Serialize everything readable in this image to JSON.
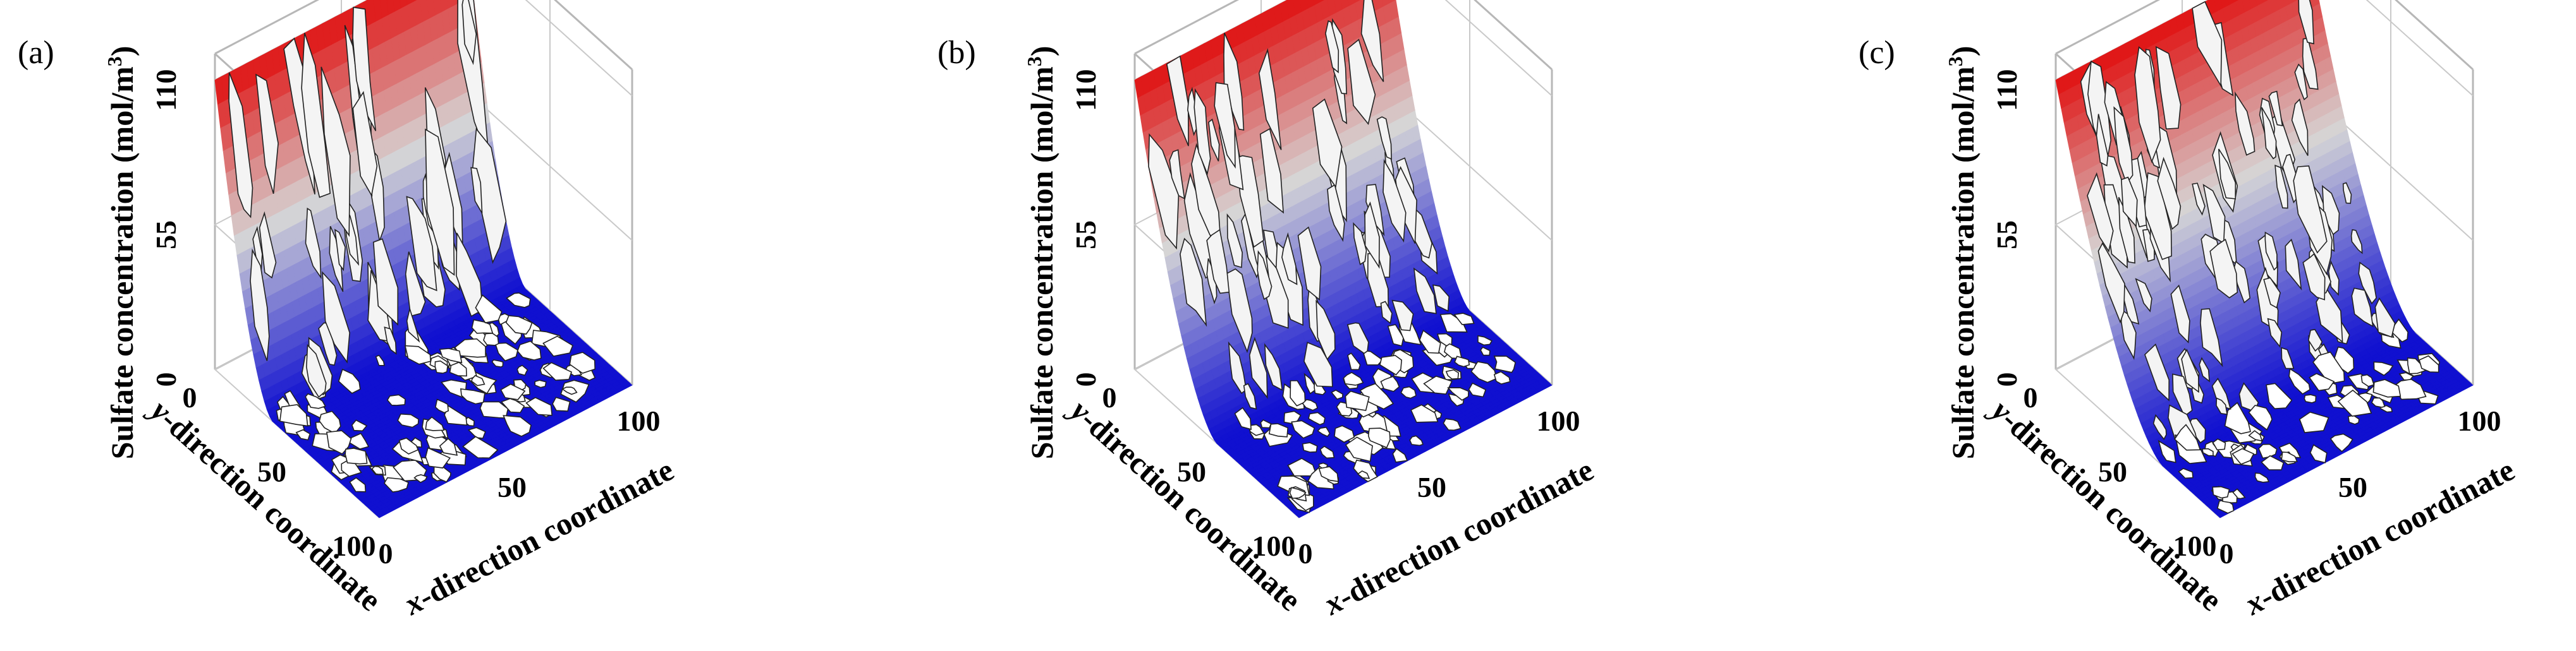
{
  "chart_data": [
    {
      "type": "surface3d",
      "panel_label": "(a)",
      "zlabel": "Sulfate concentration (mol/m³)",
      "zlabel_parts": [
        "Sulfate concentration (mol/m",
        "3",
        ")"
      ],
      "xlabel": "x-direction coordinate",
      "ylabel": "y-direction coordinate",
      "xlabel_parts": [
        "x",
        "-direction coordinate"
      ],
      "ylabel_parts": [
        "y",
        "-direction coordinate"
      ],
      "z_ticks": [
        0,
        55,
        110
      ],
      "x_ticks": [
        0,
        50,
        100
      ],
      "y_ticks": [
        0,
        50,
        100
      ],
      "xlim": [
        0,
        100
      ],
      "ylim": [
        0,
        100
      ],
      "zlim": [
        0,
        120
      ],
      "penetration_depth": 0.35,
      "colormap": [
        "#1010d0",
        "#d6d6d6",
        "#e01010"
      ]
    },
    {
      "type": "surface3d",
      "panel_label": "(b)",
      "zlabel": "Sulfate concentration (mol/m³)",
      "zlabel_parts": [
        "Sulfate concentration (mol/m",
        "3",
        ")"
      ],
      "xlabel": "x-direction coordinate",
      "ylabel": "y-direction coordinate",
      "xlabel_parts": [
        "x",
        "-direction coordinate"
      ],
      "ylabel_parts": [
        "y",
        "-direction coordinate"
      ],
      "z_ticks": [
        0,
        55,
        110
      ],
      "x_ticks": [
        0,
        50,
        100
      ],
      "y_ticks": [
        0,
        50,
        100
      ],
      "xlim": [
        0,
        100
      ],
      "ylim": [
        0,
        100
      ],
      "zlim": [
        0,
        120
      ],
      "penetration_depth": 0.5,
      "colormap": [
        "#1010d0",
        "#d6d6d6",
        "#e01010"
      ]
    },
    {
      "type": "surface3d",
      "panel_label": "(c)",
      "zlabel": "Sulfate concentration (mol/m³)",
      "zlabel_parts": [
        "Sulfate concentration (mol/m",
        "3",
        ")"
      ],
      "xlabel": "x-direction coordinate",
      "ylabel": "y-direction coordinate",
      "xlabel_parts": [
        "x",
        "-direction coordinate"
      ],
      "ylabel_parts": [
        "y",
        "-direction coordinate"
      ],
      "z_ticks": [
        0,
        55,
        110
      ],
      "x_ticks": [
        0,
        50,
        100
      ],
      "y_ticks": [
        0,
        50,
        100
      ],
      "xlim": [
        0,
        100
      ],
      "ylim": [
        0,
        100
      ],
      "zlim": [
        0,
        120
      ],
      "penetration_depth": 0.65,
      "colormap": [
        "#1010d0",
        "#d6d6d6",
        "#e01010"
      ]
    }
  ]
}
